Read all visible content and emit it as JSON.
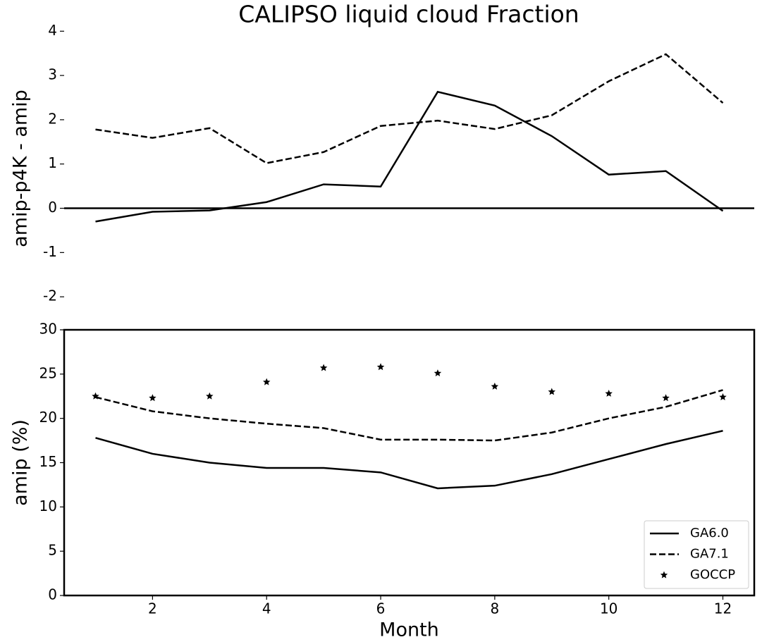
{
  "chart_data": [
    {
      "type": "line",
      "title": "CALIPSO liquid cloud Fraction",
      "y_label": "amip-p4K - amip",
      "x": [
        1,
        2,
        3,
        4,
        5,
        6,
        7,
        8,
        9,
        10,
        11,
        12
      ],
      "xlim": [
        0.45,
        12.55
      ],
      "ylim": [
        -2.3,
        4.1
      ],
      "yticks": [
        -2,
        -1,
        0,
        1,
        2,
        3,
        4
      ],
      "frame": false,
      "zero_line": true,
      "series": [
        {
          "color": "#000000",
          "dash": "solid",
          "values": [
            -0.3,
            -0.08,
            -0.05,
            0.14,
            0.54,
            0.49,
            2.63,
            2.32,
            1.63,
            0.76,
            0.84,
            -0.06
          ]
        },
        {
          "color": "#000000",
          "dash": "dashed",
          "values": [
            1.78,
            1.59,
            1.81,
            1.02,
            1.27,
            1.86,
            1.98,
            1.79,
            2.1,
            2.87,
            3.48,
            2.38
          ]
        }
      ]
    },
    {
      "type": "line",
      "y_label": "amip (%)",
      "x_label": "Month",
      "x": [
        1,
        2,
        3,
        4,
        5,
        6,
        7,
        8,
        9,
        10,
        11,
        12
      ],
      "xlim": [
        0.45,
        12.55
      ],
      "xticks": [
        2,
        4,
        6,
        8,
        10,
        12
      ],
      "ylim": [
        0,
        30
      ],
      "yticks": [
        0,
        5,
        10,
        15,
        20,
        25,
        30
      ],
      "frame": true,
      "legend": "lower right",
      "series": [
        {
          "name": "GA6.0",
          "color": "#000000",
          "dash": "solid",
          "values": [
            17.8,
            16.0,
            15.0,
            14.4,
            14.4,
            13.9,
            12.1,
            12.4,
            13.7,
            15.4,
            17.1,
            18.6
          ]
        },
        {
          "name": "GA7.1",
          "color": "#000000",
          "dash": "dashed",
          "values": [
            22.4,
            20.8,
            20.0,
            19.4,
            18.9,
            17.6,
            17.6,
            17.5,
            18.4,
            20.0,
            21.3,
            23.2
          ]
        },
        {
          "name": "GOCCP",
          "color": "#000000",
          "marker": "star",
          "values": [
            22.5,
            22.3,
            22.5,
            24.1,
            25.7,
            25.8,
            25.1,
            23.6,
            23.0,
            22.8,
            22.3,
            22.4
          ]
        }
      ]
    }
  ]
}
